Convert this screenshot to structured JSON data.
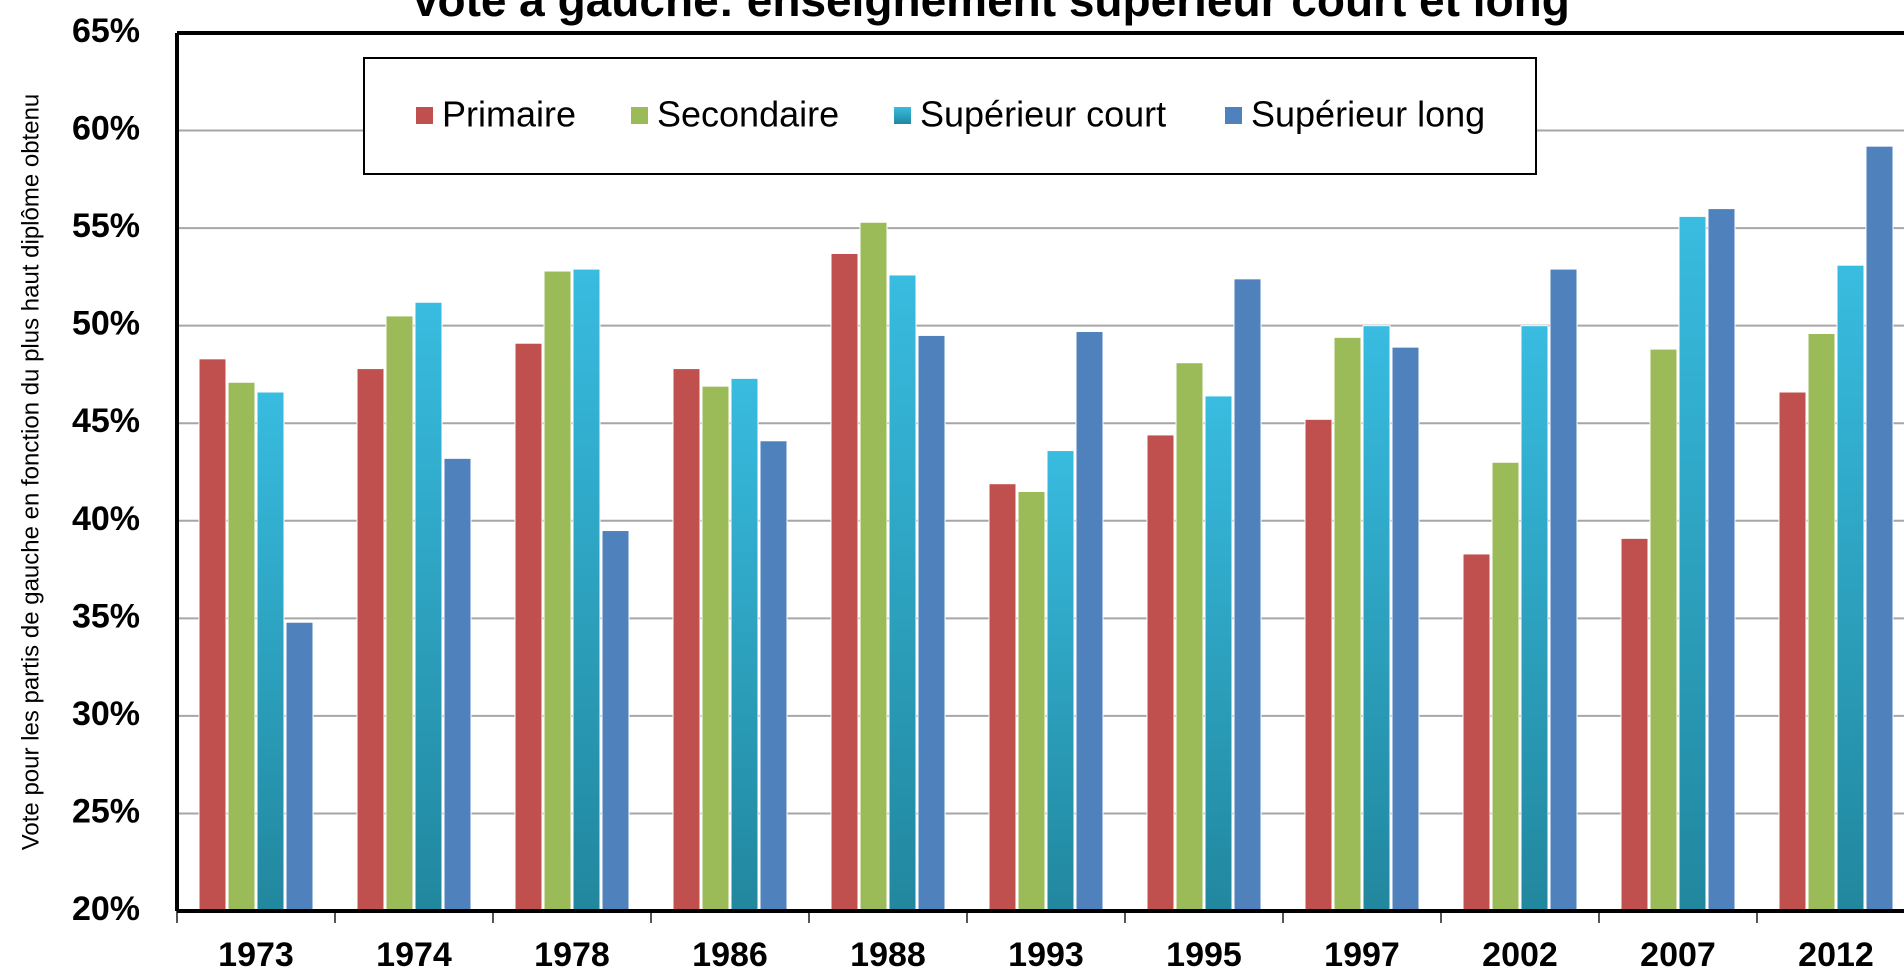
{
  "chart_data": {
    "type": "bar",
    "title": "Vote à gauche: enseignement supérieur court et long",
    "y_label": "Vote pour les partis de gauche en fonction du plus haut diplôme obtenu",
    "categories": [
      "1973",
      "1974",
      "1978",
      "1986",
      "1988",
      "1993",
      "1995",
      "1997",
      "2002",
      "2007",
      "2012"
    ],
    "series": [
      {
        "name": "Primaire",
        "color": "#c0504d",
        "values": [
          48.3,
          47.8,
          49.1,
          47.8,
          53.7,
          41.9,
          44.4,
          45.2,
          38.3,
          39.1,
          46.6
        ]
      },
      {
        "name": "Secondaire",
        "color": "#9bbb59",
        "values": [
          47.1,
          50.5,
          52.8,
          46.9,
          55.3,
          41.5,
          48.1,
          49.4,
          43.0,
          48.8,
          49.6
        ]
      },
      {
        "name": "Supérieur court",
        "color": "#31b0d5",
        "values": [
          46.6,
          51.2,
          52.9,
          47.3,
          52.6,
          43.6,
          46.4,
          50.0,
          50.0,
          55.6,
          53.1
        ]
      },
      {
        "name": "Supérieur long",
        "color": "#4f81bd",
        "values": [
          34.8,
          43.2,
          39.5,
          44.1,
          49.5,
          49.7,
          52.4,
          48.9,
          52.9,
          56.0,
          59.2
        ]
      }
    ],
    "ylim": [
      20,
      65
    ],
    "yticks": [
      {
        "value": 20,
        "label": "20%"
      },
      {
        "value": 25,
        "label": "25%"
      },
      {
        "value": 30,
        "label": "30%"
      },
      {
        "value": 35,
        "label": "35%"
      },
      {
        "value": 40,
        "label": "40%"
      },
      {
        "value": 45,
        "label": "45%"
      },
      {
        "value": 50,
        "label": "50%"
      },
      {
        "value": 55,
        "label": "55%"
      },
      {
        "value": 60,
        "label": "60%"
      },
      {
        "value": 65,
        "label": "65%"
      }
    ],
    "grid": true,
    "legend": "top"
  }
}
